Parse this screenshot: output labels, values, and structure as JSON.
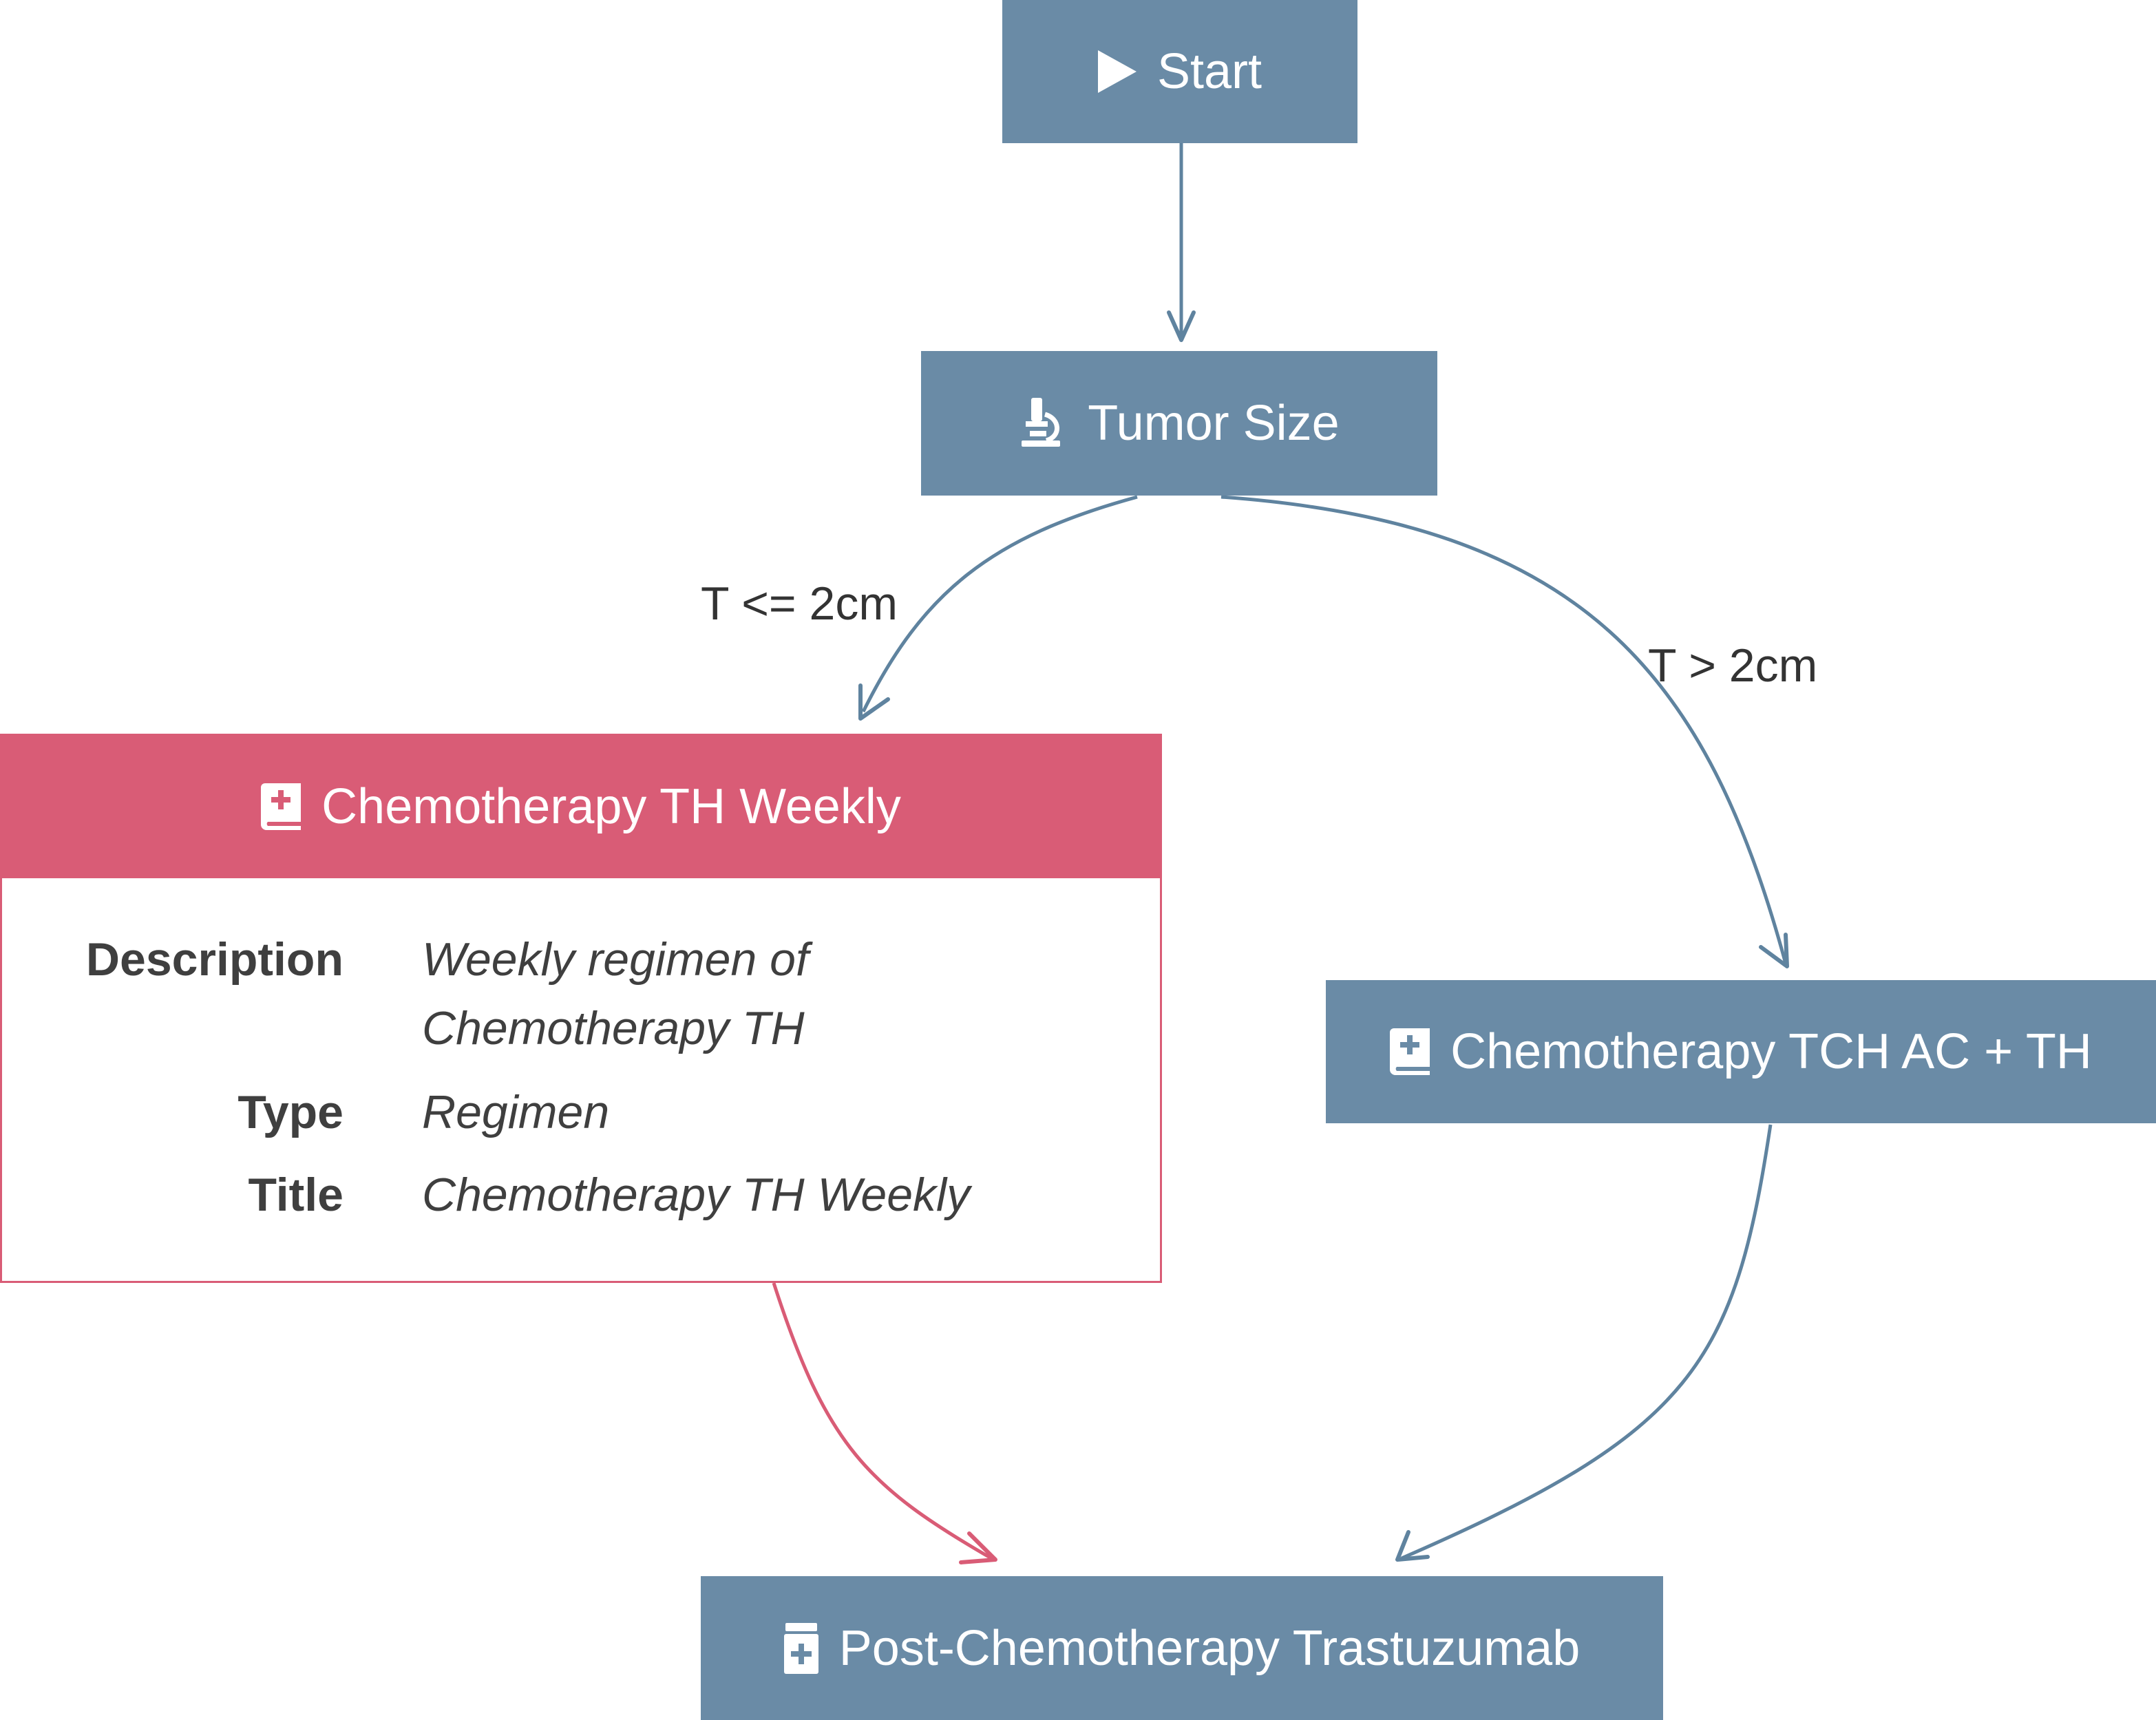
{
  "nodes": {
    "start": {
      "label": "Start",
      "icon": "play-icon"
    },
    "tumor_size": {
      "label": "Tumor Size",
      "icon": "microscope-icon"
    },
    "chemo_th_weekly": {
      "label": "Chemotherapy TH Weekly",
      "icon": "medical-book-icon"
    },
    "chemo_tch": {
      "label": "Chemotherapy TCH AC + TH",
      "icon": "medical-book-icon"
    },
    "post_chemo": {
      "label": "Post-Chemotherapy Trastuzumab",
      "icon": "pill-bottle-icon"
    }
  },
  "details": {
    "description_label": "Description",
    "description_line1": "Weekly regimen of",
    "description_line2": "Chemotherapy TH",
    "type_label": "Type",
    "type_value": "Regimen",
    "title_label": "Title",
    "title_value": "Chemotherapy TH Weekly"
  },
  "edge_labels": {
    "small": "T <= 2cm",
    "large": "T > 2cm"
  },
  "colors": {
    "node": "#6a8ba6",
    "selected": "#d95c76",
    "text": "#3f3f3f"
  }
}
